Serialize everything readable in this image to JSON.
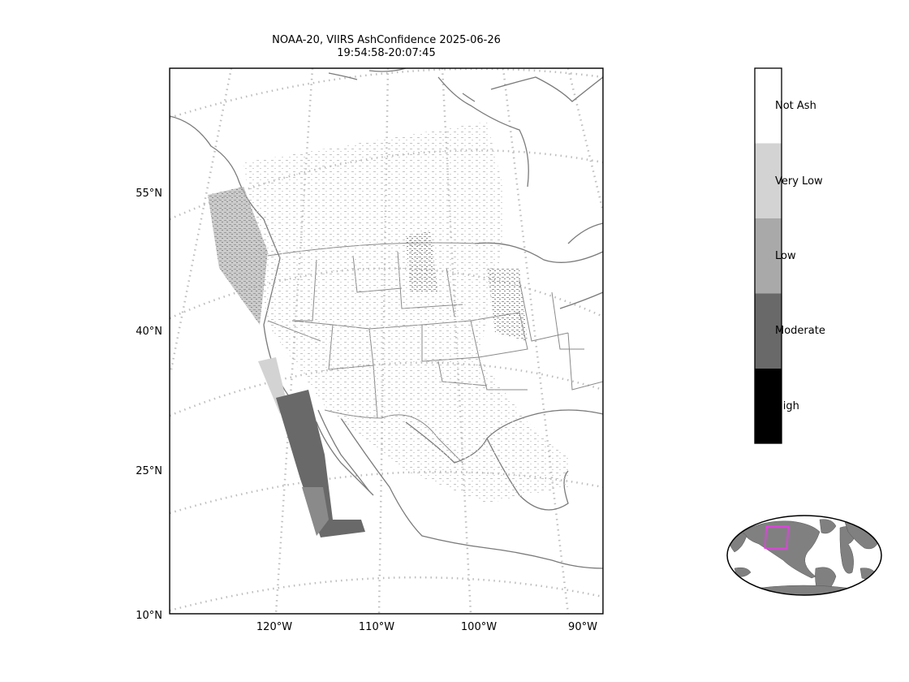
{
  "title": {
    "line1": "NOAA-20, VIIRS AshConfidence 2025-06-26",
    "line2": "19:54:58-20:07:45"
  },
  "map": {
    "projection": "lambert-conic",
    "lat_ticks": [
      "55°N",
      "40°N",
      "25°N",
      "10°N"
    ],
    "lon_ticks": [
      "120°W",
      "110°W",
      "100°W",
      "90°W"
    ],
    "graticule_style": "dotted"
  },
  "colorbar": {
    "classes": [
      {
        "label": "Not Ash",
        "color": "#ffffff"
      },
      {
        "label": "Very Low",
        "color": "#d3d3d3"
      },
      {
        "label": "Low",
        "color": "#a9a9a9"
      },
      {
        "label": "Moderate",
        "color": "#696969"
      },
      {
        "label": "High",
        "color": "#000000"
      }
    ]
  },
  "inset": {
    "land_color": "#808080",
    "highlight_color": "#e040e0"
  }
}
